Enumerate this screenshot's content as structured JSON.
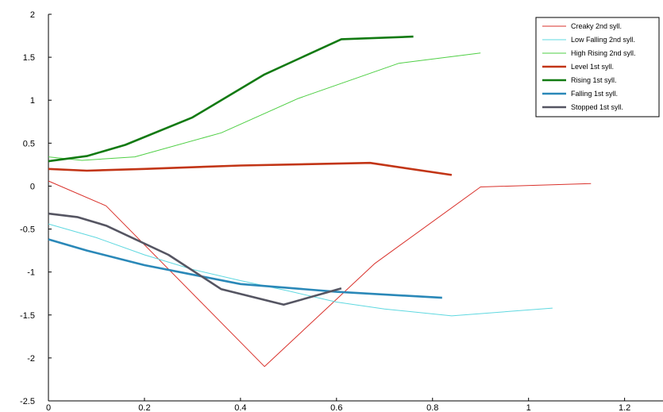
{
  "chart_data": {
    "type": "line",
    "title": "",
    "xlabel": "",
    "ylabel": "",
    "xlim": [
      0,
      1.28
    ],
    "ylim": [
      -2.5,
      2
    ],
    "x_ticks": [
      "0",
      "0.2",
      "0.4",
      "0.6",
      "0.8",
      "1",
      "1.2"
    ],
    "y_ticks": [
      "2",
      "1.5",
      "1",
      "0.5",
      "0",
      "-0.5",
      "-1",
      "-1.5",
      "-2",
      "-2.5"
    ],
    "grid": false,
    "legend_position": "top-right",
    "series": [
      {
        "name": "Creaky 2nd syll.",
        "color": "#d9312b",
        "weight": "thin",
        "x": [
          0,
          0.12,
          0.45,
          0.68,
          0.9,
          1.13
        ],
        "y": [
          0.06,
          -0.23,
          -2.1,
          -0.9,
          -0.01,
          0.03
        ]
      },
      {
        "name": "Low Falling 2nd syll.",
        "color": "#5fd8e0",
        "weight": "thin",
        "x": [
          0,
          0.1,
          0.2,
          0.3,
          0.4,
          0.5,
          0.6,
          0.7,
          0.84,
          1.05
        ],
        "y": [
          -0.44,
          -0.6,
          -0.8,
          -0.97,
          -1.1,
          -1.22,
          -1.35,
          -1.43,
          -1.51,
          -1.42
        ]
      },
      {
        "name": "High Rising 2nd syll.",
        "color": "#4fcf45",
        "weight": "thin",
        "x": [
          0,
          0.07,
          0.18,
          0.36,
          0.52,
          0.73,
          0.9
        ],
        "y": [
          0.34,
          0.3,
          0.34,
          0.62,
          1.02,
          1.43,
          1.55
        ]
      },
      {
        "name": "Level 1st syll.",
        "color": "#c23516",
        "weight": "thick",
        "x": [
          0,
          0.08,
          0.2,
          0.4,
          0.67,
          0.84
        ],
        "y": [
          0.2,
          0.18,
          0.2,
          0.24,
          0.27,
          0.13
        ]
      },
      {
        "name": "Rising 1st syll.",
        "color": "#127a12",
        "weight": "thick",
        "x": [
          0,
          0.08,
          0.16,
          0.3,
          0.45,
          0.61,
          0.76
        ],
        "y": [
          0.29,
          0.35,
          0.48,
          0.8,
          1.3,
          1.71,
          1.74
        ]
      },
      {
        "name": "Falling 1st syll.",
        "color": "#2a88b8",
        "weight": "thick",
        "x": [
          0,
          0.08,
          0.2,
          0.4,
          0.6,
          0.82
        ],
        "y": [
          -0.62,
          -0.75,
          -0.92,
          -1.14,
          -1.23,
          -1.3
        ]
      },
      {
        "name": "Stopped 1st syll.",
        "color": "#555562",
        "weight": "thick",
        "x": [
          0,
          0.06,
          0.12,
          0.25,
          0.36,
          0.49,
          0.61
        ],
        "y": [
          -0.32,
          -0.36,
          -0.46,
          -0.8,
          -1.2,
          -1.38,
          -1.19
        ]
      }
    ]
  }
}
